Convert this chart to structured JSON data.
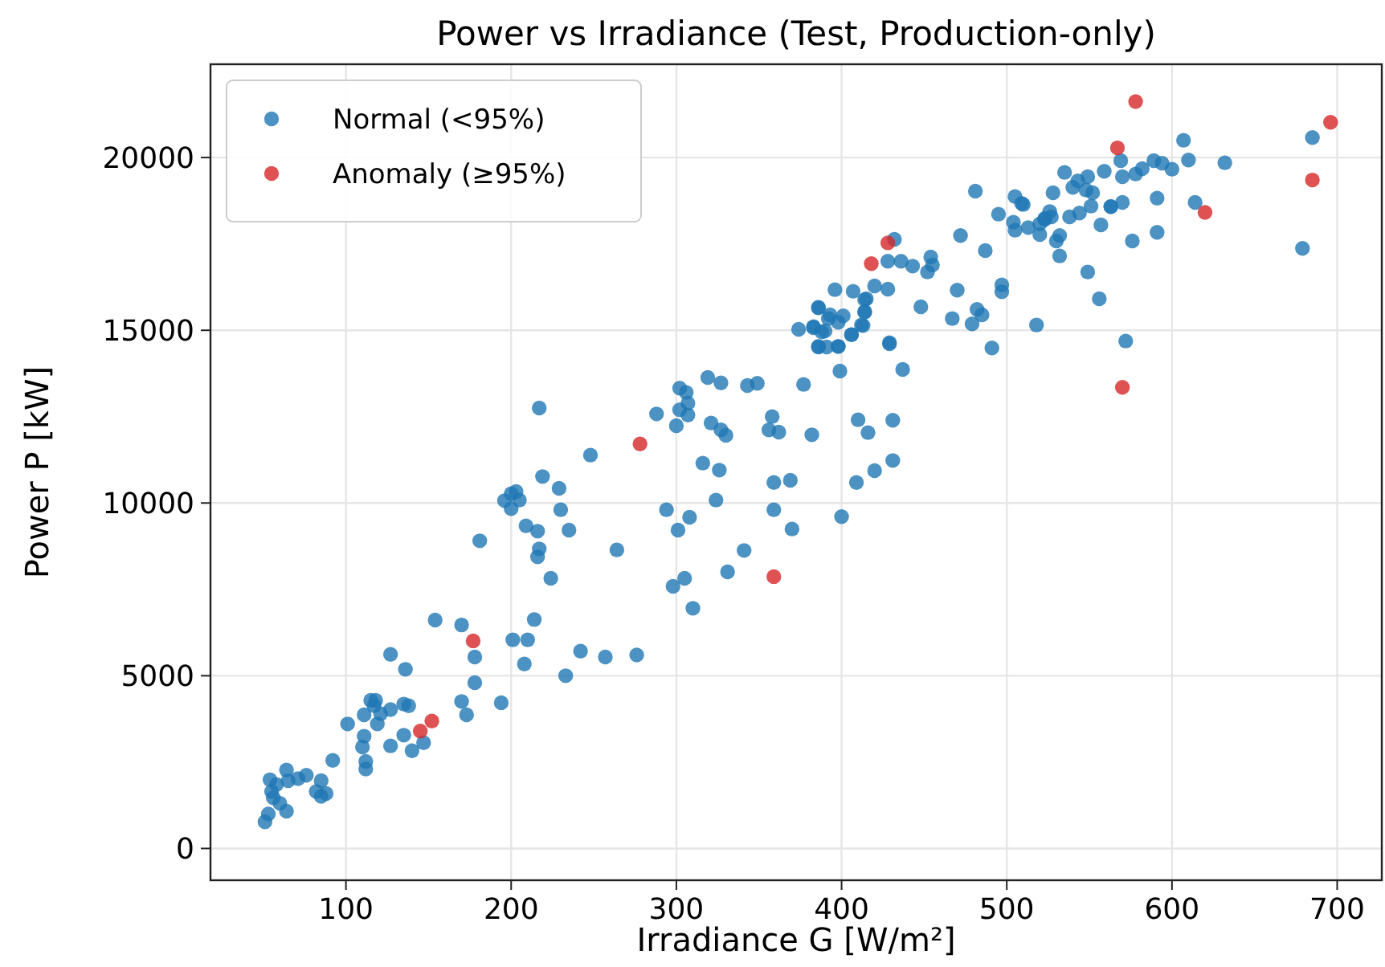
{
  "chart_data": {
    "type": "scatter",
    "title": "Power vs Irradiance (Test, Production-only)",
    "xlabel": "Irradiance G [W/m²]",
    "ylabel": "Power P [kW]",
    "xlim": [
      18,
      727
    ],
    "ylim": [
      -920,
      22700
    ],
    "xticks": [
      100,
      200,
      300,
      400,
      500,
      600,
      700
    ],
    "yticks": [
      0,
      5000,
      10000,
      15000,
      20000
    ],
    "grid": true,
    "legend": "top left",
    "marker": "circle",
    "series": [
      {
        "name": "Normal (<95%)",
        "color": "#1f77b4",
        "x": [
          181,
          154,
          170,
          201,
          210,
          178,
          208,
          127,
          136,
          178,
          115,
          118,
          117,
          127,
          135,
          138,
          111,
          121,
          170,
          173,
          194,
          101,
          111,
          119,
          135,
          127,
          110,
          112,
          112,
          140,
          147,
          92,
          64,
          54,
          65,
          76,
          85,
          55,
          56,
          60,
          64,
          82,
          88,
          85,
          53,
          51,
          71,
          58,
          217,
          248,
          219,
          229,
          203,
          200,
          205,
          196,
          200,
          230,
          209,
          216,
          235,
          217,
          216,
          224,
          214,
          242,
          257,
          233,
          276,
          396,
          407,
          415,
          420,
          428,
          386,
          393,
          401,
          398,
          414,
          412,
          374,
          383,
          390,
          386,
          391,
          398,
          406,
          429,
          399,
          319,
          327,
          343,
          349,
          377,
          302,
          306,
          307,
          302,
          307,
          300,
          288,
          321,
          327,
          330,
          358,
          356,
          362,
          382,
          410,
          416,
          431,
          316,
          326,
          359,
          369,
          409,
          420,
          431,
          264,
          294,
          308,
          301,
          324,
          359,
          370,
          400,
          341,
          331,
          305,
          298,
          310,
          481,
          505,
          510,
          495,
          504,
          505,
          513,
          520,
          523,
          528,
          535,
          526,
          532,
          530,
          532,
          549,
          556,
          557,
          563,
          472,
          487,
          470,
          497,
          497,
          448,
          467,
          479,
          482,
          485,
          518,
          491,
          429,
          437,
          454,
          455,
          452,
          443,
          436,
          428,
          432,
          414,
          414,
          413,
          406,
          392,
          386,
          388,
          386,
          398,
          383,
          685,
          607,
          610,
          632,
          569,
          589,
          594,
          600,
          582,
          578,
          570,
          559,
          549,
          543,
          552,
          548,
          540,
          591,
          614,
          570,
          563,
          551,
          544,
          538,
          527,
          523,
          520,
          576,
          591,
          679,
          572,
          509
        ],
        "values": [
          8906,
          6612,
          6470,
          6040,
          6040,
          5542,
          5340,
          5620,
          5186,
          4800,
          4287,
          4290,
          4132,
          4020,
          4180,
          4130,
          3870,
          3900,
          4256,
          3870,
          4220,
          3605,
          3250,
          3605,
          3280,
          2970,
          2940,
          2520,
          2300,
          2830,
          3060,
          2550,
          2270,
          1990,
          1962,
          2120,
          1962,
          1650,
          1466,
          1310,
          1080,
          1650,
          1590,
          1510,
          1000,
          770,
          2020,
          1850,
          12750,
          11386,
          10766,
          10425,
          10332,
          10270,
          10084,
          10068,
          9836,
          9805,
          9340,
          9185,
          9216,
          8673,
          8441,
          7821,
          6627,
          5713,
          5543,
          5000,
          5600,
          16175,
          16129,
          15912,
          16284,
          16191,
          15664,
          15447,
          15416,
          15230,
          15540,
          15152,
          15028,
          15106,
          14982,
          14517,
          14517,
          14532,
          14873,
          14610,
          13820,
          13634,
          13478,
          13400,
          13463,
          13432,
          13324,
          13200,
          12890,
          12700,
          12548,
          12238,
          12579,
          12316,
          12115,
          11960,
          12502,
          12115,
          12053,
          11975,
          12409,
          12037,
          12394,
          11154,
          10952,
          10595,
          10657,
          10595,
          10936,
          11231,
          8643,
          9805,
          9588,
          9216,
          10084,
          9805,
          9247,
          9604,
          8627,
          8007,
          7821,
          7589,
          6953,
          19028,
          18872,
          18640,
          18361,
          18128,
          17896,
          17973,
          17772,
          18237,
          18980,
          19570,
          18438,
          17741,
          17586,
          17152,
          16687,
          15912,
          18050,
          18578,
          17741,
          17307,
          16160,
          16315,
          16113,
          15680,
          15339,
          15184,
          15602,
          15447,
          15153,
          14486,
          14641,
          13866,
          17120,
          16890,
          16687,
          16857,
          16997,
          16997,
          17632,
          15881,
          15524,
          15137,
          14874,
          15339,
          15649,
          14951,
          14532,
          14532,
          15075,
          20578,
          20500,
          19926,
          19849,
          19911,
          19911,
          19834,
          19663,
          19678,
          19523,
          19446,
          19601,
          19446,
          19322,
          18980,
          19058,
          19136,
          18826,
          18702,
          18702,
          18578,
          18593,
          18392,
          18283,
          18283,
          18206,
          18082,
          17586,
          17834,
          17369,
          14687,
          18671
        ]
      },
      {
        "name": "Anomaly (≥95%)",
        "color": "#d62728",
        "x": [
          145,
          152,
          177,
          278,
          359,
          418,
          428,
          567,
          578,
          620,
          570,
          685,
          696
        ],
        "values": [
          3400,
          3690,
          6010,
          11710,
          7870,
          16930,
          17530,
          20280,
          21620,
          18410,
          13350,
          19350,
          21020
        ]
      }
    ]
  }
}
